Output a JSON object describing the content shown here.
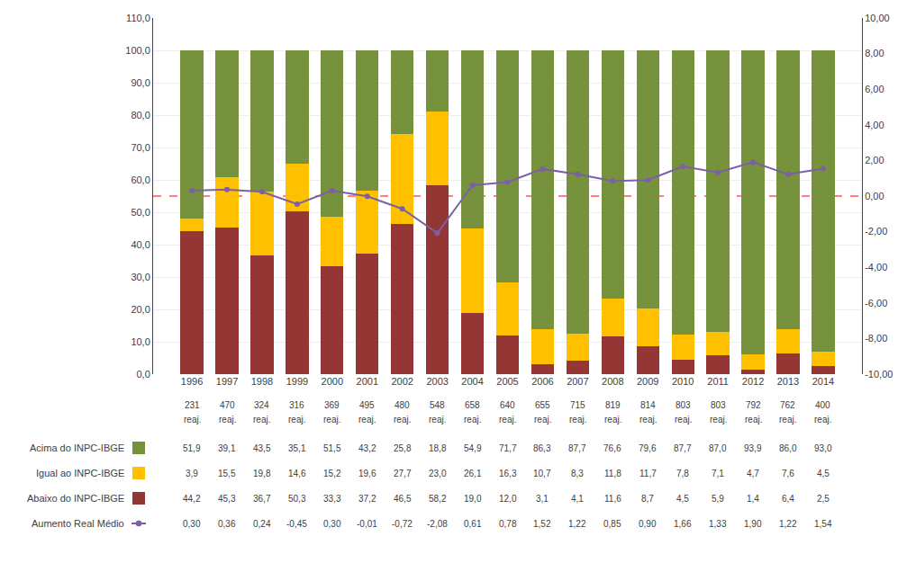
{
  "chart_data": {
    "type": "bar",
    "stacked": true,
    "grid": true,
    "categories": [
      "1996",
      "1997",
      "1998",
      "1999",
      "2000",
      "2001",
      "2002",
      "2003",
      "2004",
      "2005",
      "2006",
      "2007",
      "2008",
      "2009",
      "2010",
      "2011",
      "2012",
      "2013",
      "2014"
    ],
    "reaj": [
      231,
      470,
      324,
      316,
      369,
      495,
      480,
      548,
      658,
      640,
      655,
      715,
      819,
      814,
      803,
      803,
      792,
      762,
      400
    ],
    "reaj_label": "reaj.",
    "ylim": [
      0,
      110
    ],
    "yticks": [
      {
        "value": 0,
        "label": "0,0"
      },
      {
        "value": 10,
        "label": "10,0"
      },
      {
        "value": 20,
        "label": "20,0"
      },
      {
        "value": 30,
        "label": "30,0"
      },
      {
        "value": 40,
        "label": "40,0"
      },
      {
        "value": 50,
        "label": "50,0"
      },
      {
        "value": 60,
        "label": "60,0"
      },
      {
        "value": 70,
        "label": "70,0"
      },
      {
        "value": 80,
        "label": "80,0"
      },
      {
        "value": 90,
        "label": "90,0"
      },
      {
        "value": 100,
        "label": "100,0"
      },
      {
        "value": 110,
        "label": "110,0"
      }
    ],
    "y2lim": [
      -10,
      10
    ],
    "y2ticks": [
      {
        "value": -10,
        "label": "-10,00"
      },
      {
        "value": -8,
        "label": "-8,00"
      },
      {
        "value": -6,
        "label": "-6,00"
      },
      {
        "value": -4,
        "label": "-4,00"
      },
      {
        "value": -2,
        "label": "-2,00"
      },
      {
        "value": 0,
        "label": "0,00"
      },
      {
        "value": 2,
        "label": "2,00"
      },
      {
        "value": 4,
        "label": "4,00"
      },
      {
        "value": 6,
        "label": "6,00"
      },
      {
        "value": 8,
        "label": "8,00"
      },
      {
        "value": 10,
        "label": "10,00"
      }
    ],
    "series": [
      {
        "name": "Abaixo do INPC-IBGE",
        "color": "#943634",
        "values": [
          44.2,
          45.3,
          36.7,
          50.3,
          33.3,
          37.2,
          46.5,
          58.2,
          19.0,
          12.0,
          3.1,
          4.1,
          11.6,
          8.7,
          4.5,
          5.9,
          1.4,
          6.4,
          2.5
        ],
        "value_labels": [
          "44,2",
          "45,3",
          "36,7",
          "50,3",
          "33,3",
          "37,2",
          "46,5",
          "58,2",
          "19,0",
          "12,0",
          "3,1",
          "4,1",
          "11,6",
          "8,7",
          "4,5",
          "5,9",
          "1,4",
          "6,4",
          "2,5"
        ]
      },
      {
        "name": "Igual ao INPC-IBGE",
        "color": "#FFC000",
        "values": [
          3.9,
          15.5,
          19.8,
          14.6,
          15.2,
          19.6,
          27.7,
          23.0,
          26.1,
          16.3,
          10.7,
          8.3,
          11.8,
          11.7,
          7.8,
          7.1,
          4.7,
          7.6,
          4.5
        ],
        "value_labels": [
          "3,9",
          "15,5",
          "19,8",
          "14,6",
          "15,2",
          "19,6",
          "27,7",
          "23,0",
          "26,1",
          "16,3",
          "10,7",
          "8,3",
          "11,8",
          "11,7",
          "7,8",
          "7,1",
          "4,7",
          "7,6",
          "4,5"
        ]
      },
      {
        "name": "Acima do INPC-IBGE",
        "color": "#76923C",
        "values": [
          51.9,
          39.1,
          43.5,
          35.1,
          51.5,
          43.2,
          25.8,
          18.8,
          54.9,
          71.7,
          86.3,
          87.7,
          76.6,
          79.6,
          87.7,
          87.0,
          93.9,
          86.0,
          93.0
        ],
        "value_labels": [
          "51,9",
          "39,1",
          "43,5",
          "35,1",
          "51,5",
          "43,2",
          "25,8",
          "18,8",
          "54,9",
          "71,7",
          "86,3",
          "87,7",
          "76,6",
          "79,6",
          "87,7",
          "87,0",
          "93,9",
          "86,0",
          "93,0"
        ]
      },
      {
        "name": "Aumento Real Médio",
        "type": "line",
        "axis": "y2",
        "color": "#7B61A3",
        "marker": "circle",
        "values": [
          0.3,
          0.36,
          0.24,
          -0.45,
          0.3,
          -0.01,
          -0.72,
          -2.08,
          0.61,
          0.78,
          1.52,
          1.22,
          0.85,
          0.9,
          1.66,
          1.33,
          1.9,
          1.22,
          1.54
        ],
        "value_labels": [
          "0,30",
          "0,36",
          "0,24",
          "-0,45",
          "0,30",
          "-0,01",
          "-0,72",
          "-2,08",
          "0,61",
          "0,78",
          "1,52",
          "1,22",
          "0,85",
          "0,90",
          "1,66",
          "1,33",
          "1,90",
          "1,22",
          "1,54"
        ]
      }
    ],
    "reference_line": {
      "axis": "y2",
      "value": 0,
      "color": "#FF0000",
      "line_style": "dashed"
    }
  }
}
